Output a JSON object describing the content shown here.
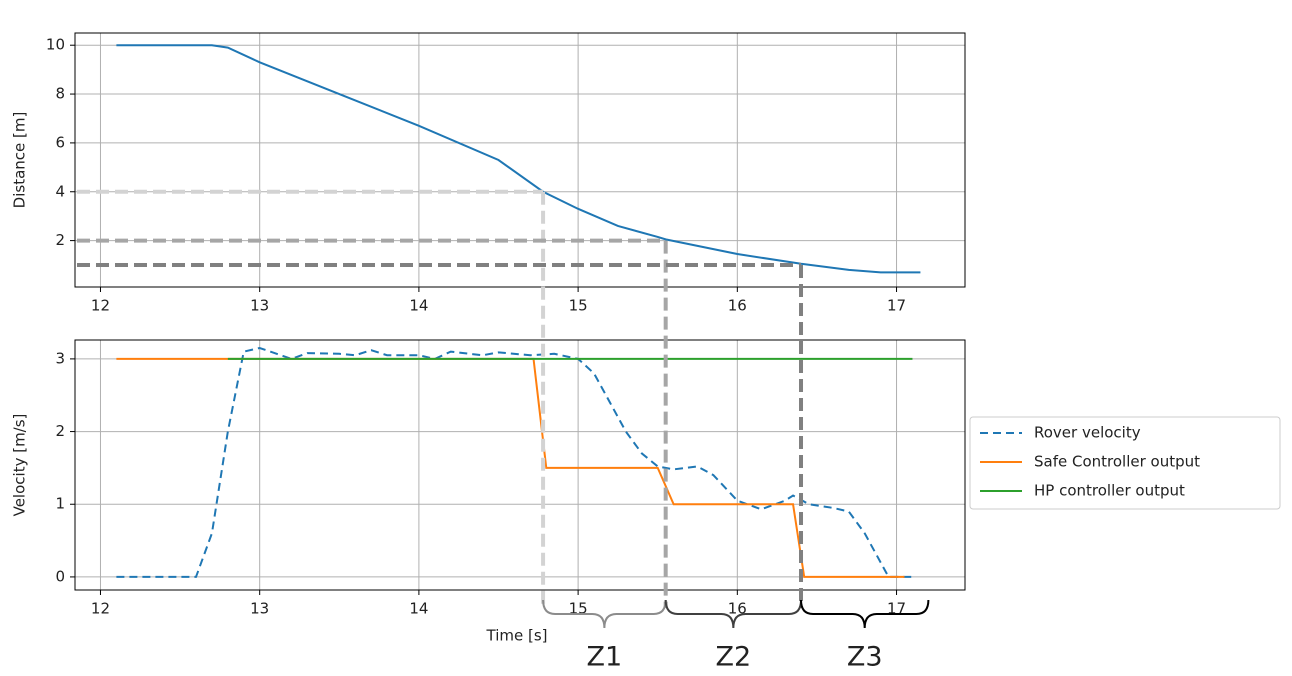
{
  "chart_data": [
    {
      "type": "line",
      "ylabel": "Distance [m]",
      "xlim": [
        11.84,
        17.43
      ],
      "xticks": [
        12,
        13,
        14,
        15,
        16,
        17
      ],
      "ylim": [
        0.1,
        10.5
      ],
      "yticks": [
        2,
        4,
        6,
        8,
        10
      ],
      "grid": true,
      "series": [
        {
          "name": "Distance",
          "color": "#1f77b4",
          "style": "solid",
          "x": [
            12.1,
            12.7,
            12.8,
            13.0,
            13.5,
            14.0,
            14.5,
            14.78,
            15.0,
            15.25,
            15.5,
            15.55,
            16.0,
            16.4,
            16.7,
            16.9,
            17.15
          ],
          "values": [
            10,
            10,
            9.9,
            9.3,
            8.0,
            6.7,
            5.3,
            4.0,
            3.3,
            2.6,
            2.15,
            2.05,
            1.45,
            1.05,
            0.8,
            0.7,
            0.7
          ]
        }
      ],
      "thresholds": [
        {
          "distance": 4,
          "time": 14.78,
          "color": "#d3d3d3"
        },
        {
          "distance": 2,
          "time": 15.55,
          "color": "#a6a6a6"
        },
        {
          "distance": 1,
          "time": 16.4,
          "color": "#808080"
        }
      ]
    },
    {
      "type": "line",
      "xlabel": "Time [s]",
      "ylabel": "Velocity [m/s]",
      "xlim": [
        11.84,
        17.43
      ],
      "xticks": [
        12,
        13,
        14,
        15,
        16,
        17
      ],
      "ylim": [
        -0.18,
        3.26
      ],
      "yticks": [
        0,
        1,
        2,
        3
      ],
      "grid": true,
      "legend": "outside right",
      "series": [
        {
          "name": "Rover velocity",
          "color": "#1f77b4",
          "style": "dashed",
          "x": [
            12.1,
            12.6,
            12.7,
            12.8,
            12.9,
            13.0,
            13.2,
            13.3,
            13.5,
            13.6,
            13.7,
            13.8,
            14.0,
            14.1,
            14.2,
            14.4,
            14.5,
            14.7,
            14.85,
            15.0,
            15.1,
            15.2,
            15.3,
            15.4,
            15.5,
            15.6,
            15.75,
            15.85,
            16.0,
            16.15,
            16.3,
            16.35,
            16.45,
            16.6,
            16.7,
            16.8,
            16.95,
            17.1
          ],
          "values": [
            0,
            0,
            0.6,
            2.0,
            3.1,
            3.15,
            3.0,
            3.08,
            3.07,
            3.05,
            3.12,
            3.05,
            3.05,
            3.0,
            3.1,
            3.05,
            3.09,
            3.05,
            3.07,
            3.0,
            2.8,
            2.4,
            2.0,
            1.7,
            1.52,
            1.48,
            1.52,
            1.4,
            1.05,
            0.93,
            1.05,
            1.12,
            1.0,
            0.95,
            0.9,
            0.6,
            0.0,
            0.0
          ]
        },
        {
          "name": "Safe Controller output",
          "color": "#ff7f0e",
          "style": "solid",
          "x": [
            12.1,
            14.72,
            14.8,
            15.5,
            15.6,
            16.35,
            16.42,
            17.05
          ],
          "values": [
            3,
            3,
            1.5,
            1.5,
            1.0,
            1.0,
            0.0,
            0.0
          ]
        },
        {
          "name": "HP controller output",
          "color": "#2ca02c",
          "style": "solid",
          "x": [
            12.8,
            17.1
          ],
          "values": [
            3,
            3
          ]
        }
      ],
      "zones": [
        {
          "label": "Z1",
          "start": 14.78,
          "end": 15.55,
          "color": "#8c8c8c"
        },
        {
          "label": "Z2",
          "start": 15.55,
          "end": 16.4,
          "color": "#404040"
        },
        {
          "label": "Z3",
          "start": 16.4,
          "end": 17.2,
          "color": "#000000"
        }
      ]
    }
  ]
}
